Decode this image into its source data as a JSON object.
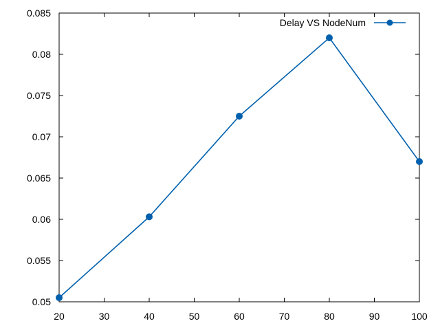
{
  "chart_data": {
    "type": "line",
    "title": "",
    "xlabel": "",
    "ylabel": "",
    "xlim": [
      20,
      100
    ],
    "ylim": [
      0.05,
      0.085
    ],
    "x_ticks": [
      20,
      30,
      40,
      50,
      60,
      70,
      80,
      90,
      100
    ],
    "x_tick_labels": [
      "20",
      "30",
      "40",
      "50",
      "60",
      "70",
      "80",
      "90",
      "100"
    ],
    "y_ticks": [
      0.05,
      0.055,
      0.06,
      0.065,
      0.07,
      0.075,
      0.08,
      0.085
    ],
    "y_tick_labels": [
      "0.05",
      "0.055",
      "0.06",
      "0.065",
      "0.07",
      "0.075",
      "0.08",
      "0.085"
    ],
    "grid": false,
    "legend_position": "top-right",
    "series": [
      {
        "name": "Delay VS NodeNum",
        "color": "#0060ad",
        "marker": "circle",
        "x": [
          20,
          40,
          60,
          80,
          100
        ],
        "y": [
          0.0505,
          0.0603,
          0.0725,
          0.082,
          0.067
        ]
      }
    ]
  }
}
